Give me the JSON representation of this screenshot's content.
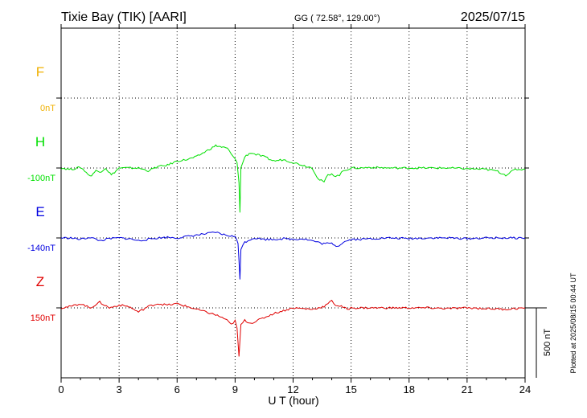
{
  "header": {
    "station": "Tixie Bay (TIK)  [AARI]",
    "coords": "GG ( 72.58°, 129.00°)",
    "date": "2025/07/15"
  },
  "footer": {
    "plotted": "Plotted at 2025/08/15 00:44 UT",
    "scale_label": "500 nT"
  },
  "chart_data": {
    "type": "line",
    "xlabel": "U T (hour)",
    "xlim": [
      0,
      24
    ],
    "xticks": [
      0,
      3,
      6,
      9,
      12,
      15,
      18,
      21,
      24
    ],
    "scale_bar_nT": 500,
    "grid": true,
    "series": [
      {
        "name": "F",
        "offset_label": "0nT",
        "color": "#f0b000",
        "baseline": 0,
        "x": [],
        "y": []
      },
      {
        "name": "H",
        "offset_label": "-100nT",
        "color": "#00e000",
        "baseline": -100,
        "x": [
          0,
          0.5,
          1,
          1.3,
          1.5,
          1.8,
          2,
          2.3,
          2.6,
          3,
          3.5,
          4,
          4.5,
          5,
          5.5,
          6,
          6.5,
          7,
          7.5,
          8,
          8.3,
          8.6,
          8.8,
          9,
          9.1,
          9.2,
          9.25,
          9.3,
          9.5,
          9.8,
          10,
          10.5,
          11,
          11.5,
          12,
          12.5,
          13,
          13.3,
          13.6,
          13.8,
          14,
          14.2,
          14.4,
          14.6,
          15,
          15.5,
          16,
          17,
          18,
          19,
          20,
          21,
          22,
          22.5,
          23,
          23.5,
          24
        ],
        "y": [
          -100,
          -110,
          -95,
          -130,
          -160,
          -120,
          -130,
          -100,
          -150,
          -100,
          -100,
          -100,
          -120,
          -90,
          -80,
          -50,
          -40,
          -20,
          20,
          60,
          50,
          40,
          0,
          -40,
          -60,
          -200,
          -420,
          -100,
          -20,
          10,
          0,
          -20,
          -50,
          -40,
          -60,
          -80,
          -100,
          -180,
          -200,
          -150,
          -140,
          -160,
          -150,
          -120,
          -100,
          -100,
          -95,
          -100,
          -100,
          -100,
          -100,
          -105,
          -110,
          -120,
          -150,
          -110,
          -110
        ]
      },
      {
        "name": "E",
        "offset_label": "-140nT",
        "color": "#0000e0",
        "baseline": -140,
        "x": [
          0,
          0.5,
          1,
          1.5,
          2,
          2.5,
          3,
          3.5,
          4,
          4.5,
          5,
          5.5,
          6,
          6.5,
          7,
          7.5,
          8,
          8.5,
          9,
          9.15,
          9.2,
          9.25,
          9.3,
          9.5,
          9.8,
          10,
          10.5,
          11,
          11.5,
          12,
          12.5,
          13,
          13.5,
          14,
          14.3,
          14.6,
          15,
          15.5,
          16,
          17,
          18,
          19,
          20,
          21,
          22,
          23,
          24
        ],
        "y": [
          -140,
          -140,
          -150,
          -135,
          -160,
          -145,
          -140,
          -145,
          -160,
          -150,
          -140,
          -135,
          -140,
          -130,
          -120,
          -110,
          -100,
          -120,
          -130,
          -180,
          -300,
          -430,
          -220,
          -170,
          -150,
          -140,
          -150,
          -150,
          -145,
          -150,
          -145,
          -160,
          -180,
          -180,
          -200,
          -170,
          -150,
          -150,
          -145,
          -140,
          -145,
          -140,
          -140,
          -145,
          -140,
          -140,
          -140
        ]
      },
      {
        "name": "Z",
        "offset_label": "150nT",
        "color": "#e00000",
        "baseline": 150,
        "x": [
          0,
          0.5,
          1,
          1.5,
          2,
          2.5,
          3,
          3.5,
          4,
          4.5,
          5,
          5.5,
          6,
          6.5,
          7,
          7.5,
          8,
          8.5,
          8.8,
          9,
          9.1,
          9.2,
          9.3,
          9.5,
          9.8,
          10,
          10.5,
          11,
          11.5,
          12,
          12.5,
          13,
          13.3,
          13.6,
          13.8,
          14,
          14.2,
          14.5,
          14.8,
          15,
          15.5,
          16,
          17,
          18,
          19,
          20,
          21,
          22,
          23,
          24
        ],
        "y": [
          150,
          160,
          180,
          150,
          190,
          150,
          170,
          160,
          120,
          160,
          180,
          170,
          180,
          160,
          140,
          120,
          100,
          70,
          30,
          60,
          0,
          -200,
          30,
          60,
          40,
          50,
          80,
          110,
          130,
          150,
          145,
          140,
          150,
          160,
          180,
          200,
          170,
          160,
          140,
          150,
          150,
          150,
          150,
          150,
          150,
          145,
          150,
          145,
          140,
          150
        ]
      }
    ]
  }
}
